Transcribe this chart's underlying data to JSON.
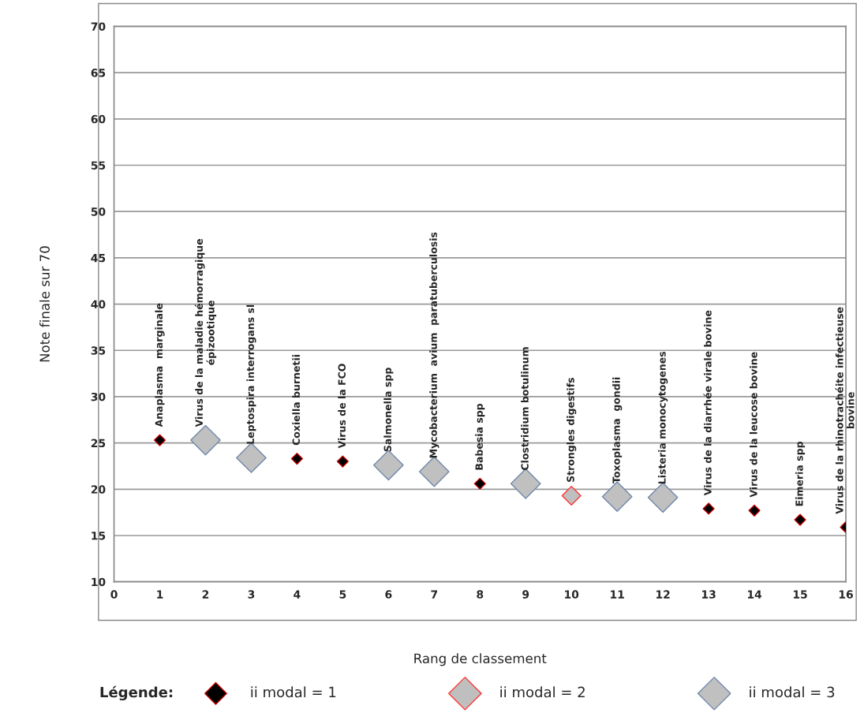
{
  "chart_data": {
    "type": "scatter",
    "xlabel": "Rang de classement",
    "ylabel": "Note finale sur 70",
    "legend_title": "Légende:",
    "xlim": [
      0,
      16
    ],
    "xticks": [
      0,
      1,
      2,
      3,
      4,
      5,
      6,
      7,
      8,
      9,
      10,
      11,
      12,
      13,
      14,
      15,
      16
    ],
    "ylim": [
      10,
      70
    ],
    "yticks": [
      10,
      15,
      20,
      25,
      30,
      35,
      40,
      45,
      50,
      55,
      60,
      65,
      70
    ],
    "grid": "y",
    "legend": "bottom",
    "marker": "diamond",
    "series": [
      {
        "name": "ii modal = 1",
        "color": "#000000",
        "x": [
          1,
          4,
          5,
          8,
          13,
          14,
          15,
          16
        ],
        "values": [
          25.3,
          23.3,
          23.0,
          20.6,
          17.9,
          17.7,
          16.7,
          15.9
        ]
      },
      {
        "name": "ii modal = 2",
        "color": "#bfbfbf",
        "x": [
          10
        ],
        "values": [
          19.3
        ]
      },
      {
        "name": "ii modal = 3",
        "color": "#c0c0c0",
        "x": [
          2,
          3,
          6,
          7,
          9,
          11,
          12
        ],
        "values": [
          25.3,
          23.4,
          22.6,
          21.9,
          20.6,
          19.2,
          19.1
        ]
      }
    ],
    "annotations": [
      {
        "text": "Anaplasma  marginale",
        "x": 1,
        "y": 25.3
      },
      {
        "text": "Virus de la maladie hémorragique\népizootique",
        "x": 2,
        "y": 25.3
      },
      {
        "text": "Leptospira interrogans sl",
        "x": 3,
        "y": 23.4
      },
      {
        "text": "Coxiella burnetii",
        "x": 4,
        "y": 23.3
      },
      {
        "text": "Virus de la FCO",
        "x": 5,
        "y": 23.0
      },
      {
        "text": "Salmonella spp",
        "x": 6,
        "y": 22.6
      },
      {
        "text": "Mycobacterium  avium  paratuberculosis",
        "x": 7,
        "y": 21.9
      },
      {
        "text": "Babesia spp",
        "x": 8,
        "y": 20.6
      },
      {
        "text": "Clostridium botulinum",
        "x": 9,
        "y": 20.6
      },
      {
        "text": "Strongles digestifs",
        "x": 10,
        "y": 19.3
      },
      {
        "text": "Toxoplasma  gondii",
        "x": 11,
        "y": 19.2
      },
      {
        "text": "Listeria monocytogenes",
        "x": 12,
        "y": 19.1
      },
      {
        "text": "Virus de la diarrhée virale bovine",
        "x": 13,
        "y": 17.9
      },
      {
        "text": "Virus de la leucose bovine",
        "x": 14,
        "y": 17.7
      },
      {
        "text": "Eimeria spp",
        "x": 15,
        "y": 16.7
      },
      {
        "text": "Virus de la rhinotrachéite infectieuse\nbovine",
        "x": 16,
        "y": 15.9
      }
    ]
  }
}
